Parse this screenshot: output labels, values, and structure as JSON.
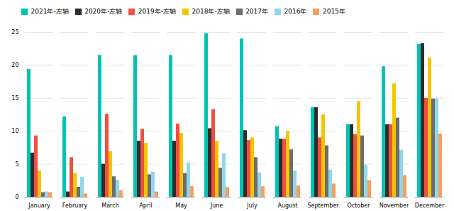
{
  "chart_data": {
    "type": "bar",
    "categories": [
      "January",
      "February",
      "March",
      "April",
      "May",
      "June",
      "July",
      "August",
      "September",
      "October",
      "November",
      "December"
    ],
    "series": [
      {
        "name": "2021年-左轴",
        "color": "#00C4B3",
        "values": [
          19.4,
          12.2,
          21.5,
          21.5,
          21.5,
          24.8,
          24.0,
          10.7,
          13.6,
          11.0,
          19.8,
          23.2
        ]
      },
      {
        "name": "2020年-左轴",
        "color": "#2D2D2D",
        "values": [
          6.7,
          0.8,
          5.0,
          8.5,
          8.5,
          10.4,
          10.1,
          8.8,
          13.6,
          11.0,
          11.0,
          23.3
        ]
      },
      {
        "name": "2019年-左轴",
        "color": "#F05040",
        "values": [
          9.3,
          6.0,
          12.6,
          10.3,
          11.1,
          13.3,
          8.6,
          8.8,
          9.0,
          9.5,
          11.0,
          15.0
        ]
      },
      {
        "name": "2018年-左轴",
        "color": "#F5C500",
        "values": [
          4.0,
          3.6,
          6.9,
          8.2,
          9.7,
          8.5,
          9.0,
          10.0,
          12.5,
          14.5,
          17.2,
          21.1
        ]
      },
      {
        "name": "2017年",
        "color": "#6D6D6D",
        "values": [
          0.7,
          1.5,
          3.1,
          3.4,
          3.6,
          4.4,
          6.0,
          7.2,
          7.8,
          9.3,
          12.0,
          14.9
        ]
      },
      {
        "name": "2016年",
        "color": "#90D8E8",
        "values": [
          0.8,
          3.0,
          2.6,
          3.8,
          5.2,
          6.6,
          3.7,
          4.0,
          4.1,
          4.9,
          7.1,
          14.9
        ]
      },
      {
        "name": "2015年",
        "color": "#F5A060",
        "values": [
          0.7,
          0.5,
          1.0,
          0.8,
          1.6,
          1.5,
          1.6,
          1.7,
          2.0,
          2.5,
          3.3,
          9.6
        ]
      }
    ],
    "ylim": [
      0,
      25
    ],
    "yticks": [
      0,
      5,
      10,
      15,
      20,
      25
    ],
    "grid": true,
    "legend": "upper left"
  }
}
